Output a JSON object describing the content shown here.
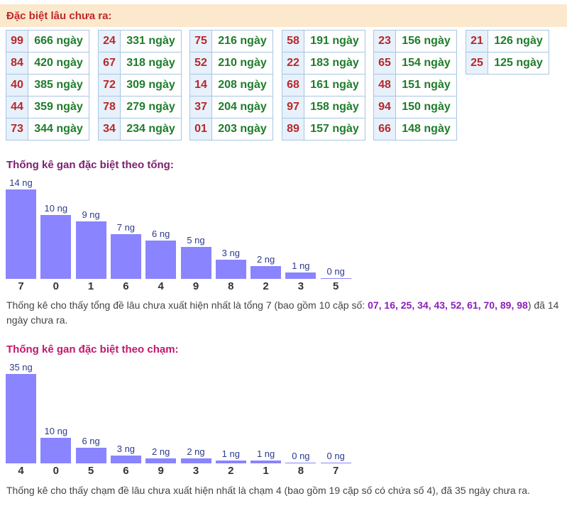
{
  "header": {
    "title": "Đặc biệt lâu chưa ra:"
  },
  "table": {
    "columns": [
      [
        {
          "num": "99",
          "days": "666 ngày"
        },
        {
          "num": "84",
          "days": "420 ngày"
        },
        {
          "num": "40",
          "days": "385 ngày"
        },
        {
          "num": "44",
          "days": "359 ngày"
        },
        {
          "num": "73",
          "days": "344 ngày"
        }
      ],
      [
        {
          "num": "24",
          "days": "331 ngày"
        },
        {
          "num": "67",
          "days": "318 ngày"
        },
        {
          "num": "72",
          "days": "309 ngày"
        },
        {
          "num": "78",
          "days": "279 ngày"
        },
        {
          "num": "34",
          "days": "234 ngày"
        }
      ],
      [
        {
          "num": "75",
          "days": "216 ngày"
        },
        {
          "num": "52",
          "days": "210 ngày"
        },
        {
          "num": "14",
          "days": "208 ngày"
        },
        {
          "num": "37",
          "days": "204 ngày"
        },
        {
          "num": "01",
          "days": "203 ngày"
        }
      ],
      [
        {
          "num": "58",
          "days": "191 ngày"
        },
        {
          "num": "22",
          "days": "183 ngày"
        },
        {
          "num": "68",
          "days": "161 ngày"
        },
        {
          "num": "97",
          "days": "158 ngày"
        },
        {
          "num": "89",
          "days": "157 ngày"
        }
      ],
      [
        {
          "num": "23",
          "days": "156 ngày"
        },
        {
          "num": "65",
          "days": "154 ngày"
        },
        {
          "num": "48",
          "days": "151 ngày"
        },
        {
          "num": "94",
          "days": "150 ngày"
        },
        {
          "num": "66",
          "days": "148 ngày"
        }
      ],
      [
        {
          "num": "21",
          "days": "126 ngày"
        },
        {
          "num": "25",
          "days": "125 ngày"
        }
      ]
    ]
  },
  "section1": {
    "title": "Thống kê gan đặc biệt theo tổng:",
    "title_color": "#7a1f6e",
    "desc_pre": "Thống kê cho thấy tổng đề lâu chưa xuất hiện nhất là tổng 7 (bao gồm 10 cặp số: ",
    "desc_highlight": "07, 16, 25, 34, 43, 52, 61, 70, 89, 98",
    "desc_post": ") đã 14 ngày chưa ra."
  },
  "section2": {
    "title": "Thống kê gan đặc biệt theo chạm:",
    "title_color": "#c2186b",
    "desc": "Thống kê cho thấy chạm đề lâu chưa xuất hiện nhất là chạm 4 (bao gồm 19 cặp số có chứa số 4), đã 35 ngày chưa ra."
  },
  "chart_data": [
    {
      "type": "bar",
      "title": "Thống kê gan đặc biệt theo tổng:",
      "bar_color": "#8a84ff",
      "categories": [
        "7",
        "0",
        "1",
        "6",
        "4",
        "9",
        "8",
        "2",
        "3",
        "5"
      ],
      "values": [
        14,
        10,
        9,
        7,
        6,
        5,
        3,
        2,
        1,
        0
      ],
      "value_labels": [
        "14 ng",
        "10 ng",
        "9 ng",
        "7 ng",
        "6 ng",
        "5 ng",
        "3 ng",
        "2 ng",
        "1 ng",
        "0 ng"
      ]
    },
    {
      "type": "bar",
      "title": "Thống kê gan đặc biệt theo chạm:",
      "bar_color": "#8a84ff",
      "categories": [
        "4",
        "0",
        "5",
        "6",
        "9",
        "3",
        "2",
        "1",
        "8",
        "7"
      ],
      "values": [
        35,
        10,
        6,
        3,
        2,
        2,
        1,
        1,
        0,
        0
      ],
      "value_labels": [
        "35 ng",
        "10 ng",
        "6 ng",
        "3 ng",
        "2 ng",
        "2 ng",
        "1 ng",
        "1 ng",
        "0 ng",
        "0 ng"
      ]
    }
  ]
}
